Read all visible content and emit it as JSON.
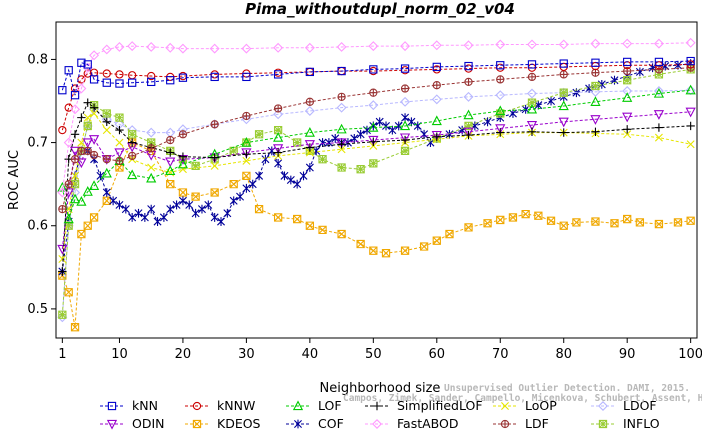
{
  "chart_data": {
    "type": "line",
    "title": "Pima_withoutdupl_norm_02_v04",
    "xlabel": "Neighborhood size",
    "ylabel": "ROC AUC",
    "xlim": [
      0,
      101
    ],
    "ylim": [
      0.465,
      0.845
    ],
    "xticks": [
      1,
      10,
      20,
      30,
      40,
      50,
      60,
      70,
      80,
      90,
      100
    ],
    "yticks": [
      0.5,
      0.6,
      0.7,
      0.8
    ],
    "ytick_labels": [
      "0.5",
      "0.6",
      "0.7",
      "0.8"
    ],
    "grid": false,
    "legend_position": "bottom",
    "watermark": [
      "Unsupervised Outlier Detection. DAMI, 2015.",
      "Campos, Zimek, Sander, Campello, Micenkova, Schubert, Assent, Houle"
    ],
    "series": [
      {
        "name": "kNN",
        "color": "#0000cc",
        "marker": "square",
        "x": [
          1,
          2,
          3,
          4,
          5,
          6,
          8,
          10,
          12,
          15,
          18,
          20,
          25,
          30,
          35,
          40,
          45,
          50,
          55,
          60,
          65,
          70,
          75,
          80,
          85,
          90,
          95,
          100
        ],
        "y": [
          0.763,
          0.787,
          0.757,
          0.796,
          0.794,
          0.776,
          0.772,
          0.771,
          0.772,
          0.773,
          0.775,
          0.778,
          0.779,
          0.779,
          0.782,
          0.785,
          0.786,
          0.788,
          0.789,
          0.791,
          0.792,
          0.793,
          0.794,
          0.795,
          0.796,
          0.797,
          0.797,
          0.798
        ]
      },
      {
        "name": "kNNW",
        "color": "#cc0000",
        "marker": "circle",
        "x": [
          1,
          2,
          3,
          4,
          5,
          6,
          8,
          10,
          12,
          15,
          18,
          20,
          25,
          30,
          35,
          40,
          45,
          50,
          55,
          60,
          65,
          70,
          75,
          80,
          85,
          90,
          95,
          100
        ],
        "y": [
          0.715,
          0.742,
          0.765,
          0.776,
          0.783,
          0.784,
          0.783,
          0.782,
          0.781,
          0.78,
          0.779,
          0.78,
          0.782,
          0.783,
          0.784,
          0.785,
          0.786,
          0.786,
          0.787,
          0.788,
          0.789,
          0.79,
          0.79,
          0.791,
          0.792,
          0.793,
          0.793,
          0.794
        ]
      },
      {
        "name": "LOF",
        "color": "#00cc00",
        "marker": "triangle",
        "x": [
          1,
          2,
          3,
          4,
          5,
          6,
          8,
          10,
          12,
          15,
          18,
          20,
          25,
          30,
          35,
          40,
          45,
          50,
          55,
          60,
          65,
          70,
          75,
          80,
          85,
          90,
          95,
          100
        ],
        "y": [
          0.646,
          0.608,
          0.632,
          0.629,
          0.641,
          0.648,
          0.663,
          0.678,
          0.661,
          0.657,
          0.666,
          0.674,
          0.686,
          0.7,
          0.706,
          0.712,
          0.716,
          0.718,
          0.72,
          0.726,
          0.733,
          0.738,
          0.74,
          0.744,
          0.749,
          0.754,
          0.759,
          0.763
        ]
      },
      {
        "name": "SimplifiedLOF",
        "color": "#000000",
        "marker": "plus",
        "x": [
          1,
          2,
          3,
          4,
          5,
          6,
          8,
          10,
          12,
          15,
          18,
          20,
          25,
          30,
          35,
          40,
          45,
          50,
          55,
          60,
          65,
          70,
          75,
          80,
          85,
          90,
          95,
          100
        ],
        "y": [
          0.545,
          0.68,
          0.71,
          0.73,
          0.748,
          0.742,
          0.725,
          0.715,
          0.7,
          0.694,
          0.688,
          0.683,
          0.682,
          0.686,
          0.688,
          0.694,
          0.698,
          0.701,
          0.703,
          0.707,
          0.709,
          0.712,
          0.713,
          0.712,
          0.713,
          0.716,
          0.718,
          0.72
        ]
      },
      {
        "name": "LoOP",
        "color": "#e6e600",
        "marker": "x",
        "x": [
          1,
          2,
          3,
          4,
          5,
          6,
          8,
          10,
          12,
          15,
          18,
          20,
          25,
          30,
          35,
          40,
          45,
          50,
          55,
          60,
          65,
          70,
          75,
          80,
          85,
          90,
          95,
          100
        ],
        "y": [
          0.56,
          0.62,
          0.66,
          0.7,
          0.73,
          0.735,
          0.715,
          0.7,
          0.68,
          0.67,
          0.664,
          0.668,
          0.672,
          0.678,
          0.684,
          0.688,
          0.692,
          0.696,
          0.7,
          0.704,
          0.708,
          0.71,
          0.712,
          0.712,
          0.711,
          0.71,
          0.706,
          0.698
        ]
      },
      {
        "name": "LDOF",
        "color": "#b8b8ff",
        "marker": "diamond",
        "x": [
          1,
          2,
          3,
          4,
          5,
          6,
          8,
          10,
          12,
          15,
          18,
          20,
          25,
          30,
          35,
          40,
          45,
          50,
          55,
          60,
          65,
          70,
          75,
          80,
          85,
          90,
          95,
          100
        ],
        "y": [
          0.49,
          0.6,
          0.64,
          0.69,
          0.72,
          0.74,
          0.728,
          0.722,
          0.715,
          0.712,
          0.712,
          0.716,
          0.722,
          0.728,
          0.734,
          0.738,
          0.742,
          0.745,
          0.749,
          0.752,
          0.755,
          0.757,
          0.759,
          0.76,
          0.761,
          0.762,
          0.762,
          0.763
        ]
      },
      {
        "name": "ODIN",
        "color": "#9900cc",
        "marker": "triangle-down",
        "x": [
          1,
          2,
          3,
          4,
          5,
          6,
          8,
          10,
          12,
          15,
          18,
          20,
          25,
          30,
          35,
          40,
          45,
          50,
          55,
          60,
          65,
          70,
          75,
          80,
          85,
          90,
          95,
          100
        ],
        "y": [
          0.572,
          0.64,
          0.69,
          0.676,
          0.7,
          0.704,
          0.68,
          0.688,
          0.695,
          0.685,
          0.677,
          0.68,
          0.682,
          0.688,
          0.693,
          0.698,
          0.7,
          0.703,
          0.706,
          0.709,
          0.713,
          0.717,
          0.721,
          0.725,
          0.728,
          0.731,
          0.734,
          0.737
        ]
      },
      {
        "name": "KDEOS",
        "color": "#f0a800",
        "marker": "square-x",
        "x": [
          1,
          2,
          3,
          4,
          5,
          6,
          8,
          10,
          12,
          15,
          18,
          20,
          22,
          25,
          28,
          30,
          32,
          35,
          38,
          40,
          42,
          45,
          48,
          50,
          52,
          55,
          58,
          60,
          62,
          65,
          68,
          70,
          72,
          74,
          76,
          78,
          80,
          82,
          85,
          88,
          90,
          92,
          95,
          98,
          100
        ],
        "y": [
          0.54,
          0.52,
          0.478,
          0.59,
          0.6,
          0.61,
          0.63,
          0.67,
          0.7,
          0.69,
          0.65,
          0.64,
          0.635,
          0.64,
          0.65,
          0.66,
          0.62,
          0.61,
          0.608,
          0.6,
          0.595,
          0.59,
          0.578,
          0.57,
          0.567,
          0.57,
          0.575,
          0.582,
          0.59,
          0.598,
          0.603,
          0.607,
          0.61,
          0.614,
          0.612,
          0.606,
          0.6,
          0.604,
          0.605,
          0.603,
          0.608,
          0.604,
          0.602,
          0.604,
          0.606
        ]
      },
      {
        "name": "FastABOD",
        "color": "#ff99ff",
        "marker": "diamond",
        "x": [
          1,
          2,
          3,
          4,
          5,
          6,
          8,
          10,
          12,
          15,
          18,
          20,
          25,
          30,
          35,
          40,
          45,
          50,
          55,
          60,
          65,
          70,
          75,
          80,
          85,
          90,
          95,
          100
        ],
        "y": [
          0.64,
          0.7,
          0.74,
          0.765,
          0.79,
          0.805,
          0.812,
          0.815,
          0.816,
          0.815,
          0.814,
          0.813,
          0.813,
          0.813,
          0.814,
          0.814,
          0.815,
          0.816,
          0.816,
          0.817,
          0.817,
          0.818,
          0.818,
          0.818,
          0.819,
          0.819,
          0.819,
          0.82
        ]
      },
      {
        "name": "COF",
        "color": "#000099",
        "marker": "asterisk",
        "x": [
          1,
          2,
          3,
          4,
          5,
          6,
          7,
          8,
          9,
          10,
          11,
          12,
          13,
          14,
          15,
          16,
          17,
          18,
          19,
          20,
          21,
          22,
          23,
          24,
          25,
          26,
          27,
          28,
          29,
          30,
          31,
          32,
          33,
          34,
          35,
          36,
          37,
          38,
          39,
          40,
          41,
          42,
          43,
          44,
          45,
          46,
          47,
          48,
          49,
          50,
          51,
          52,
          53,
          54,
          55,
          56,
          57,
          58,
          59,
          60,
          62,
          64,
          66,
          68,
          70,
          72,
          74,
          76,
          78,
          80,
          82,
          84,
          86,
          88,
          90,
          92,
          94,
          96,
          98,
          100
        ],
        "y": [
          0.545,
          0.605,
          0.66,
          0.69,
          0.69,
          0.68,
          0.66,
          0.64,
          0.63,
          0.625,
          0.62,
          0.61,
          0.615,
          0.61,
          0.62,
          0.605,
          0.61,
          0.62,
          0.625,
          0.63,
          0.625,
          0.615,
          0.62,
          0.625,
          0.61,
          0.605,
          0.615,
          0.63,
          0.635,
          0.645,
          0.65,
          0.66,
          0.68,
          0.69,
          0.675,
          0.66,
          0.655,
          0.65,
          0.66,
          0.67,
          0.69,
          0.7,
          0.7,
          0.705,
          0.7,
          0.7,
          0.705,
          0.71,
          0.715,
          0.72,
          0.725,
          0.72,
          0.715,
          0.72,
          0.73,
          0.725,
          0.72,
          0.71,
          0.7,
          0.705,
          0.71,
          0.715,
          0.72,
          0.725,
          0.73,
          0.735,
          0.74,
          0.745,
          0.75,
          0.755,
          0.76,
          0.765,
          0.77,
          0.775,
          0.78,
          0.785,
          0.79,
          0.792,
          0.793,
          0.795
        ]
      },
      {
        "name": "LDF",
        "color": "#993333",
        "marker": "circle-plus",
        "x": [
          1,
          2,
          3,
          4,
          5,
          6,
          8,
          10,
          12,
          15,
          18,
          20,
          25,
          30,
          35,
          40,
          45,
          50,
          55,
          60,
          65,
          70,
          75,
          80,
          85,
          90,
          95,
          100
        ],
        "y": [
          0.62,
          0.65,
          0.68,
          0.69,
          0.69,
          0.685,
          0.68,
          0.678,
          0.684,
          0.693,
          0.703,
          0.71,
          0.722,
          0.732,
          0.741,
          0.749,
          0.755,
          0.76,
          0.765,
          0.769,
          0.773,
          0.776,
          0.779,
          0.782,
          0.784,
          0.786,
          0.788,
          0.79
        ]
      },
      {
        "name": "INFLO",
        "color": "#99cc33",
        "marker": "square-star",
        "x": [
          1,
          2,
          3,
          4,
          5,
          6,
          8,
          10,
          12,
          15,
          18,
          20,
          22,
          25,
          28,
          30,
          32,
          35,
          38,
          40,
          42,
          45,
          48,
          50,
          55,
          60,
          65,
          70,
          75,
          80,
          85,
          90,
          95,
          100
        ],
        "y": [
          0.493,
          0.6,
          0.65,
          0.69,
          0.72,
          0.745,
          0.735,
          0.73,
          0.71,
          0.7,
          0.69,
          0.68,
          0.672,
          0.68,
          0.69,
          0.7,
          0.71,
          0.715,
          0.7,
          0.69,
          0.68,
          0.67,
          0.668,
          0.675,
          0.69,
          0.705,
          0.72,
          0.735,
          0.748,
          0.76,
          0.768,
          0.775,
          0.782,
          0.788
        ]
      }
    ]
  }
}
